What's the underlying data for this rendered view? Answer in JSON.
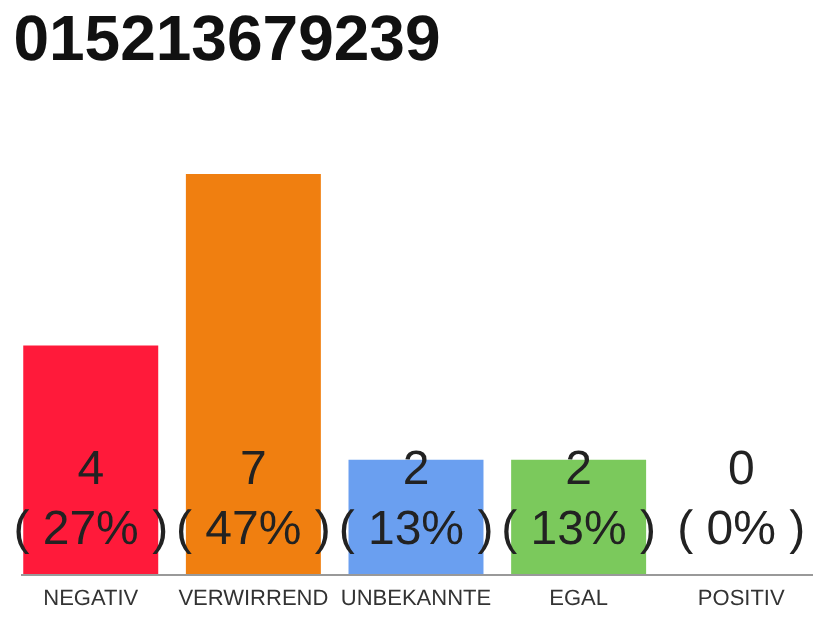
{
  "chart_data": {
    "type": "bar",
    "title": "015213679239",
    "categories": [
      "NEGATIV",
      "VERWIRREND",
      "UNBEKANNTE",
      "EGAL",
      "POSITIV"
    ],
    "values": [
      4,
      7,
      2,
      2,
      0
    ],
    "colors": [
      "#ff1a3a",
      "#f07f10",
      "#6a9ff0",
      "#7bc95c",
      "#cccccc"
    ],
    "ylim": [
      0,
      7
    ],
    "tick_labels": "x",
    "value_labels": [
      "4\n( 27% )",
      "7\n( 47% )",
      "2\n( 13% )",
      "2\n( 13% )",
      "0\n( 0% )"
    ]
  }
}
